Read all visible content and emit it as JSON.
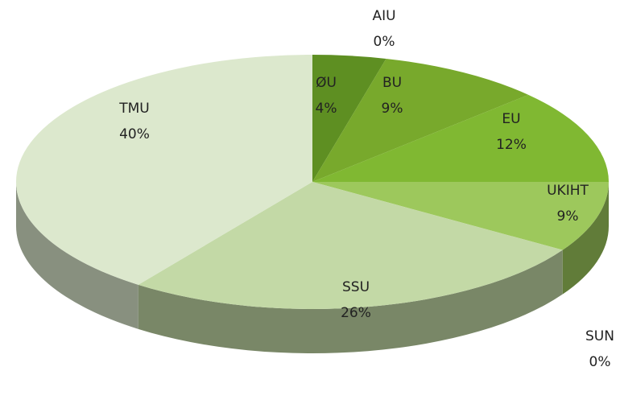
{
  "chart_data": {
    "type": "pie",
    "categories": [
      "ØU",
      "AIU",
      "BU",
      "EU",
      "UKIHT",
      "SUN",
      "SSU",
      "TMU"
    ],
    "values": [
      4,
      0,
      9,
      12,
      9,
      0,
      26,
      40
    ],
    "value_labels": [
      "4%",
      "0%",
      "9%",
      "12%",
      "9%",
      "0%",
      "26%",
      "40%"
    ],
    "colors": [
      "#5e8f22",
      "#6a9a24",
      "#78a92c",
      "#80b832",
      "#9dc85c",
      "#4b6b25",
      "#c3d9a6",
      "#dce8cd"
    ]
  }
}
